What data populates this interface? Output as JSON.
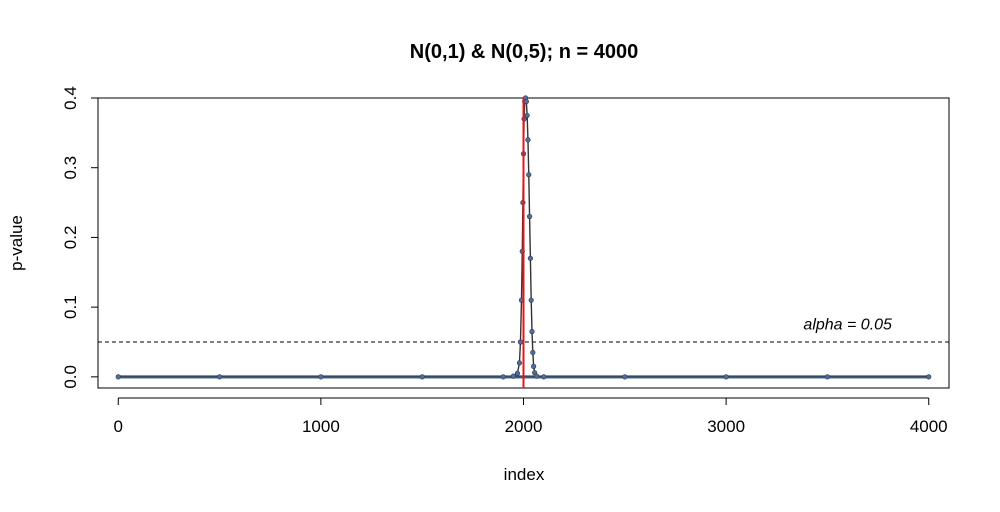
{
  "chart_data": {
    "type": "scatter",
    "title": "N(0,1) & N(0,5); n = 4000",
    "xlabel": "index",
    "ylabel": "p-value",
    "xlim": [
      -100,
      4100
    ],
    "ylim": [
      -0.016,
      0.4
    ],
    "x_ticks": [
      0,
      1000,
      2000,
      3000,
      4000
    ],
    "y_ticks": [
      0.0,
      0.1,
      0.2,
      0.3,
      0.4
    ],
    "y_tick_labels": [
      "0.0",
      "0.1",
      "0.2",
      "0.3",
      "0.4"
    ],
    "grid": false,
    "series": [
      {
        "style": "points",
        "color": "#4a6fa5",
        "points": [
          {
            "x": 0,
            "y": 0.0
          },
          {
            "x": 500,
            "y": 0.0
          },
          {
            "x": 1000,
            "y": 0.0
          },
          {
            "x": 1500,
            "y": 0.0
          },
          {
            "x": 1900,
            "y": 0.0
          },
          {
            "x": 1950,
            "y": 0.001
          },
          {
            "x": 1970,
            "y": 0.005
          },
          {
            "x": 1980,
            "y": 0.02
          },
          {
            "x": 1985,
            "y": 0.05
          },
          {
            "x": 1990,
            "y": 0.11
          },
          {
            "x": 1994,
            "y": 0.18
          },
          {
            "x": 1997,
            "y": 0.25
          },
          {
            "x": 2000,
            "y": 0.32
          },
          {
            "x": 2003,
            "y": 0.37
          },
          {
            "x": 2006,
            "y": 0.395
          },
          {
            "x": 2010,
            "y": 0.4
          },
          {
            "x": 2014,
            "y": 0.395
          },
          {
            "x": 2018,
            "y": 0.375
          },
          {
            "x": 2022,
            "y": 0.34
          },
          {
            "x": 2026,
            "y": 0.29
          },
          {
            "x": 2030,
            "y": 0.23
          },
          {
            "x": 2034,
            "y": 0.17
          },
          {
            "x": 2038,
            "y": 0.11
          },
          {
            "x": 2042,
            "y": 0.065
          },
          {
            "x": 2046,
            "y": 0.035
          },
          {
            "x": 2050,
            "y": 0.015
          },
          {
            "x": 2055,
            "y": 0.006
          },
          {
            "x": 2065,
            "y": 0.001
          },
          {
            "x": 2100,
            "y": 0.0
          },
          {
            "x": 2500,
            "y": 0.0
          },
          {
            "x": 3000,
            "y": 0.0
          },
          {
            "x": 3500,
            "y": 0.0
          },
          {
            "x": 4000,
            "y": 0.0
          }
        ]
      }
    ],
    "reference_lines": {
      "horizontal": {
        "y": 0.05,
        "style": "dashed",
        "color": "#000000"
      },
      "vertical": {
        "x": 2000,
        "style": "solid",
        "color": "#e8141c"
      }
    },
    "annotation": {
      "text": "alpha = 0.05",
      "x": 3600,
      "y": 0.068
    }
  }
}
